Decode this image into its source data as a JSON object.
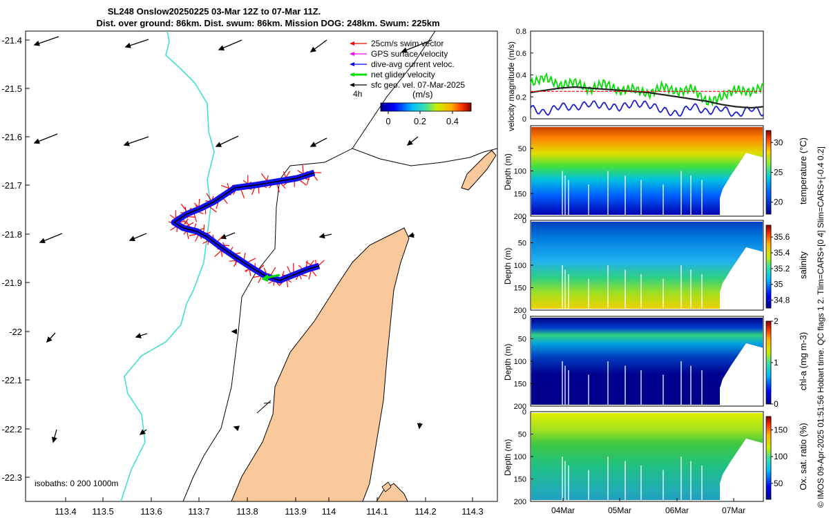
{
  "title": {
    "line1": "SL248 Onslow20250225 03-Mar 12Z to 07-Mar 11Z.",
    "line2": "Dist. over ground: 86km. Dist. swum: 86km. Mission DOG: 248km. Swum: 225km"
  },
  "map": {
    "lon_ticks": [
      "113.4",
      "113.5",
      "113.6",
      "113.7",
      "113.8",
      "113.9",
      "114",
      "114.1",
      "114.2",
      "114.3"
    ],
    "lat_ticks": [
      "-21.4",
      "-21.5",
      "-21.6",
      "-21.7",
      "-21.8",
      "-21.9",
      "-22",
      "-22.1",
      "-22.2",
      "-22.3"
    ],
    "legend": {
      "items": [
        {
          "label": "25cm/s swim vector",
          "color": "#ff0000"
        },
        {
          "label": "GPS surface velocity",
          "color": "#ff00ff"
        },
        {
          "label": "dive-avg current veloc.",
          "color": "#0000ff"
        },
        {
          "label": "net glider velocity",
          "color": "#00dd00"
        },
        {
          "label": "sfc geo. vel. 07-Mar-2025",
          "color": "#000000"
        }
      ],
      "interval_label": "4h",
      "units_label": "(m/s)",
      "colorbar_ticks": [
        "0",
        "0.2",
        "0.4"
      ]
    },
    "isobath_label": "isobaths: 0   200  1000m",
    "colors": {
      "land": "#f9c99b",
      "coast_line": "#000000",
      "isobath_200": "#40e0d0",
      "track": "#ff0000",
      "currents": "#0000ff"
    }
  },
  "timeseries": {
    "ylabel": "velocity magnitude (m/s)",
    "yticks": [
      "0",
      "0.2",
      "0.4",
      "0.6",
      "0.8"
    ],
    "ylim": [
      0,
      0.8
    ]
  },
  "sections": [
    {
      "name": "temperature",
      "cbar_label": "temperature (°C)",
      "cbar_ticks": [
        "20",
        "25",
        "30"
      ],
      "ylabel": "Depth (m)"
    },
    {
      "name": "salinity",
      "cbar_label": "salinity",
      "cbar_ticks": [
        "34.8",
        "35",
        "35.2",
        "35.4",
        "35.6"
      ],
      "ylabel": "Depth (m)"
    },
    {
      "name": "chl-a",
      "cbar_label": "chl-a (mg m-3)",
      "cbar_ticks": [
        "0",
        "1",
        "2"
      ],
      "ylabel": "Depth (m)"
    },
    {
      "name": "oxygen",
      "cbar_label": "Ox. sat. ratio (%)",
      "cbar_ticks": [
        "50",
        "100",
        "150"
      ],
      "ylabel": "Depth (m)"
    }
  ],
  "depth_ticks": [
    "50",
    "100",
    "150",
    "200"
  ],
  "depth_zero_tick": "0",
  "date_ticks": [
    "04Mar",
    "05Mar",
    "06Mar",
    "07Mar"
  ],
  "side_note": "© IMOS 09-Apr-2025 01:51:56 Hobart time. QC flags 1  2. Tlim=CARS+[0 4] Slim=CARS+[-0.4 0.2]",
  "chart_data": [
    {
      "type": "line",
      "title": "",
      "ylabel": "velocity magnitude (m/s)",
      "ylim": [
        0,
        0.8
      ],
      "x_days": [
        0,
        0.25,
        0.5,
        0.75,
        1.0,
        1.25,
        1.5,
        1.75,
        2.0,
        2.25,
        2.5,
        2.75,
        3.0,
        3.25,
        3.5,
        3.75,
        3.96
      ],
      "series": [
        {
          "name": "swim speed",
          "color": "#00dd00",
          "values": [
            0.32,
            0.38,
            0.3,
            0.34,
            0.26,
            0.33,
            0.25,
            0.28,
            0.22,
            0.3,
            0.24,
            0.28,
            0.15,
            0.2,
            0.27,
            0.24,
            0.3
          ]
        },
        {
          "name": "current speed",
          "color": "#1f1fcc",
          "values": [
            0.1,
            0.05,
            0.12,
            0.1,
            0.14,
            0.12,
            0.1,
            0.14,
            0.13,
            0.08,
            0.04,
            0.12,
            0.06,
            0.1,
            0.03,
            0.1,
            0.05
          ]
        },
        {
          "name": "net glider speed",
          "color": "#222222",
          "values": [
            0.24,
            0.26,
            0.28,
            0.29,
            0.28,
            0.27,
            0.26,
            0.25,
            0.24,
            0.22,
            0.2,
            0.18,
            0.16,
            0.13,
            0.11,
            0.1,
            0.11
          ]
        },
        {
          "name": "target speed",
          "color": "#ff0000",
          "values": [
            0.25,
            0.25,
            0.25,
            0.25,
            0.25,
            0.25,
            0.25,
            0.25,
            0.25,
            0.25,
            0.25,
            0.25,
            0.25,
            0.25,
            0.25,
            0.25,
            0.25
          ]
        }
      ]
    }
  ]
}
